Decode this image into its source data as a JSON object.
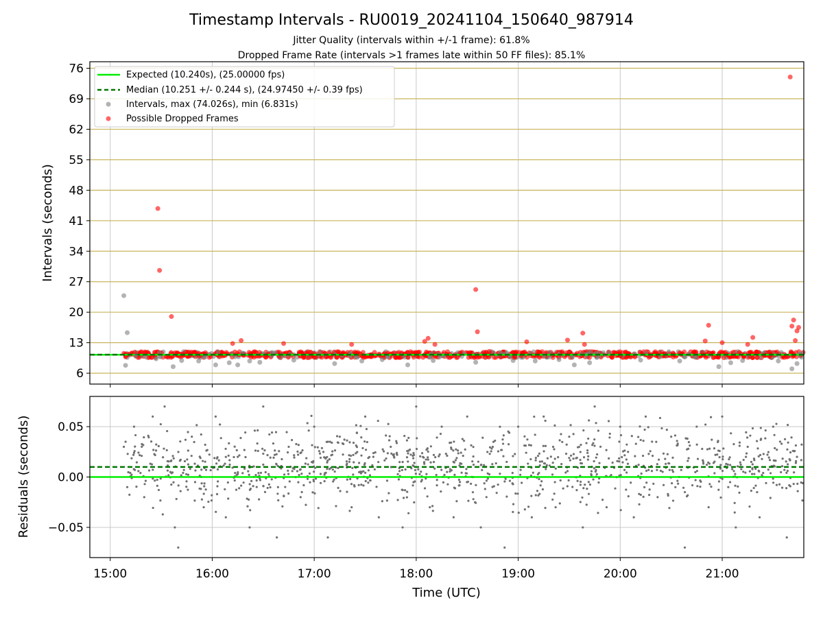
{
  "figure": {
    "title": "Timestamp Intervals - RU0019_20241104_150640_987914",
    "subtitle1": "Jitter Quality (intervals within +/-1 frame): 61.8%",
    "subtitle2": "Dropped Frame Rate (intervals >1 frames late within 50 FF files): 85.1%"
  },
  "colors": {
    "expected": "#00ee00",
    "median": "#007700",
    "intervals": "#808080",
    "dropped": "#ff0000",
    "hgrid_top": "#c8b45a",
    "grid": "#c8c8c8",
    "residual_points": "#707070"
  },
  "chart_data": [
    {
      "type": "scatter",
      "ylabel": "Intervals (seconds)",
      "xlim": [
        "14:48",
        "21:48"
      ],
      "ylim": [
        3.5,
        77.5
      ],
      "yticks": [
        6,
        13,
        20,
        27,
        34,
        41,
        48,
        55,
        62,
        69,
        76
      ],
      "legend_position": "upper left",
      "legend": [
        "Expected (10.240s), (25.00000 fps)",
        "Median (10.251 +/- 0.244 s), (24.97450 +/- 0.39 fps)",
        "Intervals, max (74.026s), min (6.831s)",
        "Possible Dropped Frames"
      ],
      "expected_interval": 10.24,
      "median_interval": 10.251,
      "series": [
        {
          "name": "Intervals, max (74.026s), min (6.831s)",
          "points": [
            [
              "15:08",
              23.8
            ],
            [
              "15:09",
              7.8
            ],
            [
              "15:10",
              15.3
            ],
            [
              "15:15",
              9.9
            ],
            [
              "15:27",
              9.3
            ],
            [
              "15:37",
              7.5
            ],
            [
              "15:42",
              8.9
            ],
            [
              "15:52",
              8.8
            ],
            [
              "16:02",
              7.9
            ],
            [
              "16:10",
              8.4
            ],
            [
              "16:15",
              7.9
            ],
            [
              "16:22",
              8.8
            ],
            [
              "16:28",
              8.5
            ],
            [
              "16:48",
              9.0
            ],
            [
              "17:12",
              8.2
            ],
            [
              "17:28",
              8.8
            ],
            [
              "17:40",
              9.1
            ],
            [
              "17:55",
              7.9
            ],
            [
              "18:10",
              8.9
            ],
            [
              "18:35",
              8.5
            ],
            [
              "18:57",
              8.9
            ],
            [
              "19:10",
              8.8
            ],
            [
              "19:24",
              9.1
            ],
            [
              "19:33",
              7.9
            ],
            [
              "19:42",
              8.4
            ],
            [
              "20:12",
              9.0
            ],
            [
              "20:35",
              8.8
            ],
            [
              "20:58",
              7.5
            ],
            [
              "21:05",
              8.4
            ],
            [
              "21:12",
              8.9
            ],
            [
              "21:33",
              8.8
            ],
            [
              "21:41",
              7.0
            ],
            [
              "21:44",
              8.2
            ]
          ]
        },
        {
          "name": "Possible Dropped Frames",
          "points": [
            [
              "15:28",
              43.8
            ],
            [
              "15:29",
              29.6
            ],
            [
              "15:36",
              19.0
            ],
            [
              "16:12",
              12.8
            ],
            [
              "16:17",
              13.5
            ],
            [
              "16:42",
              12.8
            ],
            [
              "17:22",
              12.6
            ],
            [
              "17:27",
              10.4
            ],
            [
              "18:05",
              13.3
            ],
            [
              "18:07",
              14.0
            ],
            [
              "18:11",
              12.6
            ],
            [
              "18:35",
              25.2
            ],
            [
              "18:36",
              15.5
            ],
            [
              "18:43",
              11.0
            ],
            [
              "19:05",
              13.2
            ],
            [
              "19:29",
              13.6
            ],
            [
              "19:38",
              15.2
            ],
            [
              "19:39",
              12.6
            ],
            [
              "20:50",
              13.4
            ],
            [
              "20:52",
              17.0
            ],
            [
              "21:00",
              13.0
            ],
            [
              "21:15",
              12.6
            ],
            [
              "21:18",
              14.2
            ],
            [
              "21:40",
              74.0
            ],
            [
              "21:41",
              16.8
            ],
            [
              "21:42",
              18.2
            ],
            [
              "21:43",
              13.5
            ],
            [
              "21:44",
              15.7
            ],
            [
              "21:45",
              16.5
            ]
          ]
        }
      ]
    },
    {
      "type": "scatter",
      "ylabel": "Residuals (seconds)",
      "xlabel": "Time (UTC)",
      "xlim": [
        "14:48",
        "21:48"
      ],
      "ylim": [
        -0.08,
        0.08
      ],
      "yticks": [
        "-0.05",
        "0.00",
        "0.05"
      ],
      "xticks": [
        "15:00",
        "16:00",
        "17:00",
        "18:00",
        "19:00",
        "20:00",
        "21:00"
      ],
      "expected_residual": 0.0,
      "median_residual": 0.01,
      "series": [
        {
          "name": "Residuals",
          "points": [
            [
              "15:08",
              0.03
            ],
            [
              "15:10",
              -0.01
            ],
            [
              "15:14",
              0.05
            ],
            [
              "15:20",
              -0.02
            ],
            [
              "15:25",
              0.06
            ],
            [
              "15:32",
              0.07
            ],
            [
              "15:38",
              -0.05
            ],
            [
              "15:40",
              -0.07
            ],
            [
              "15:48",
              0.04
            ],
            [
              "15:55",
              -0.03
            ],
            [
              "16:02",
              0.06
            ],
            [
              "16:08",
              -0.04
            ],
            [
              "16:15",
              0.02
            ],
            [
              "16:22",
              -0.05
            ],
            [
              "16:30",
              0.07
            ],
            [
              "16:38",
              -0.06
            ],
            [
              "16:45",
              0.03
            ],
            [
              "16:52",
              -0.02
            ],
            [
              "17:00",
              0.05
            ],
            [
              "17:08",
              -0.06
            ],
            [
              "17:15",
              0.04
            ],
            [
              "17:22",
              -0.03
            ],
            [
              "17:30",
              0.06
            ],
            [
              "17:38",
              -0.04
            ],
            [
              "17:45",
              0.03
            ],
            [
              "17:52",
              -0.05
            ],
            [
              "18:00",
              0.07
            ],
            [
              "18:08",
              -0.03
            ],
            [
              "18:15",
              0.05
            ],
            [
              "18:22",
              -0.04
            ],
            [
              "18:30",
              0.06
            ],
            [
              "18:38",
              -0.05
            ],
            [
              "18:45",
              0.03
            ],
            [
              "18:52",
              -0.07
            ],
            [
              "19:00",
              0.05
            ],
            [
              "19:08",
              -0.04
            ],
            [
              "19:15",
              0.06
            ],
            [
              "19:22",
              -0.03
            ],
            [
              "19:30",
              0.04
            ],
            [
              "19:38",
              -0.05
            ],
            [
              "19:45",
              0.07
            ],
            [
              "19:52",
              -0.03
            ],
            [
              "20:00",
              0.05
            ],
            [
              "20:08",
              -0.04
            ],
            [
              "20:15",
              0.06
            ],
            [
              "20:22",
              -0.02
            ],
            [
              "20:30",
              0.04
            ],
            [
              "20:38",
              -0.07
            ],
            [
              "20:45",
              0.05
            ],
            [
              "20:52",
              -0.03
            ],
            [
              "21:00",
              0.06
            ],
            [
              "21:08",
              -0.05
            ],
            [
              "21:15",
              0.03
            ],
            [
              "21:22",
              -0.04
            ],
            [
              "21:30",
              0.05
            ],
            [
              "21:38",
              -0.06
            ],
            [
              "21:44",
              0.02
            ]
          ]
        }
      ]
    }
  ]
}
